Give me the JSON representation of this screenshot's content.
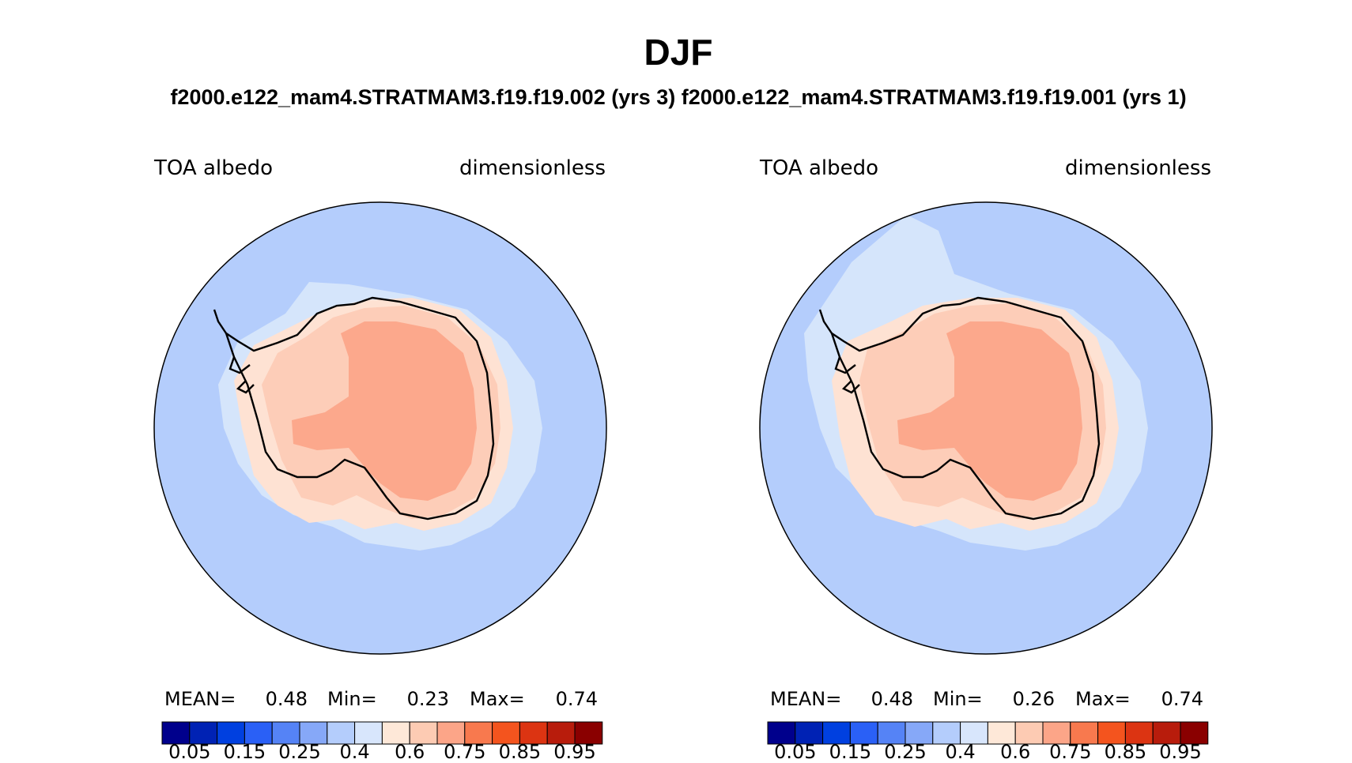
{
  "title": "DJF",
  "subtitle": "f2000.e122_mam4.STRATMAM3.f19.f19.002 (yrs 3)  f2000.e122_mam4.STRATMAM3.f19.f19.001 (yrs 1)",
  "colors": {
    "ocean": "#b4cdfc",
    "outer_band": "#d5e5fb",
    "coast_band": "#fee2d3",
    "ice_shelf": "#fdcdb8",
    "plateau": "#fca88c",
    "coastline": "#000000"
  },
  "chart_data": [
    {
      "type": "heatmap",
      "projection": "south-polar-stereographic",
      "left_label": "TOA albedo",
      "right_label": "dimensionless",
      "stats": {
        "mean_label": "MEAN=",
        "mean": "0.48",
        "min_label": "Min=",
        "min": "0.23",
        "max_label": "Max=",
        "max": "0.74"
      },
      "colorbar": {
        "ticks": [
          "0.05",
          "0.15",
          "0.25",
          "0.4",
          "0.6",
          "0.75",
          "0.85",
          "0.95"
        ],
        "colors": [
          "#00008c",
          "#0022b4",
          "#0040e0",
          "#2a60f6",
          "#5583f6",
          "#86a8f8",
          "#b4cdfc",
          "#d8e6fc",
          "#fee8d8",
          "#fdcbb3",
          "#fca588",
          "#f8794e",
          "#f4541e",
          "#dc3412",
          "#b81c0c",
          "#8a0000"
        ]
      }
    },
    {
      "type": "heatmap",
      "projection": "south-polar-stereographic",
      "left_label": "TOA albedo",
      "right_label": "dimensionless",
      "stats": {
        "mean_label": "MEAN=",
        "mean": "0.48",
        "min_label": "Min=",
        "min": "0.26",
        "max_label": "Max=",
        "max": "0.74"
      },
      "colorbar": {
        "ticks": [
          "0.05",
          "0.15",
          "0.25",
          "0.4",
          "0.6",
          "0.75",
          "0.85",
          "0.95"
        ],
        "colors": [
          "#00008c",
          "#0022b4",
          "#0040e0",
          "#2a60f6",
          "#5583f6",
          "#86a8f8",
          "#b4cdfc",
          "#d8e6fc",
          "#fee8d8",
          "#fdcbb3",
          "#fca588",
          "#f8794e",
          "#f4541e",
          "#dc3412",
          "#b81c0c",
          "#8a0000"
        ]
      }
    }
  ]
}
